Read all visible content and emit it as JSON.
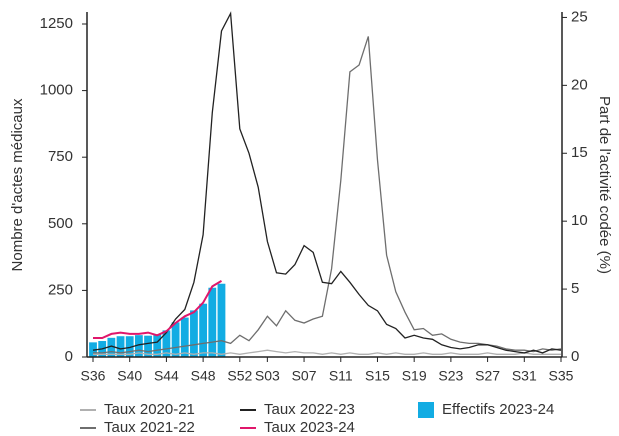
{
  "chart_data": {
    "type": "combo",
    "y_label": "Nombre d'actes médicaux",
    "y2_label": "Part de l'activité codée (%)",
    "categories": [
      "S36",
      null,
      null,
      null,
      "S40",
      null,
      null,
      null,
      "S44",
      null,
      null,
      null,
      "S48",
      null,
      null,
      null,
      "S52",
      null,
      null,
      "S03",
      null,
      null,
      null,
      "S07",
      null,
      null,
      null,
      "S11",
      null,
      null,
      null,
      "S15",
      null,
      null,
      null,
      "S19",
      null,
      null,
      null,
      "S23",
      null,
      null,
      null,
      "S27",
      null,
      null,
      null,
      "S31",
      null,
      null,
      null,
      "S35"
    ],
    "ylim": [
      0,
      1295
    ],
    "yticks": [
      0,
      250,
      500,
      750,
      1000,
      1250
    ],
    "y2lim": [
      0,
      25.4
    ],
    "y2ticks": [
      0,
      5,
      10,
      15,
      20,
      25
    ],
    "series": [
      {
        "name": "Taux 2020-21",
        "type": "line",
        "axis": "y2",
        "color": "#b0b0b0",
        "values": [
          0.2,
          0.2,
          0.2,
          0.2,
          0.2,
          0.3,
          0.2,
          0.2,
          0.3,
          0.2,
          0.3,
          0.2,
          0.3,
          0.3,
          0.2,
          0.3,
          0.2,
          0.3,
          0.4,
          0.5,
          0.4,
          0.3,
          0.4,
          0.3,
          0.3,
          0.2,
          0.3,
          0.2,
          0.3,
          0.2,
          0.2,
          0.3,
          0.2,
          0.3,
          0.2,
          0.2,
          0.3,
          0.2,
          0.2,
          0.3,
          0.2,
          0.2,
          0.2,
          0.3,
          0.2,
          0.2,
          0.2,
          0.3,
          0.2,
          0.2,
          0.2,
          0.2
        ]
      },
      {
        "name": "Taux 2021-22",
        "type": "line",
        "axis": "y2",
        "color": "#6e6e6e",
        "values": [
          0.3,
          0.3,
          0.4,
          0.3,
          0.4,
          0.5,
          0.4,
          0.5,
          0.6,
          0.7,
          0.8,
          0.9,
          1.0,
          1.1,
          1.2,
          1.0,
          1.6,
          1.2,
          2.0,
          3.0,
          2.3,
          3.4,
          2.7,
          2.5,
          2.8,
          3.0,
          6.5,
          13,
          21,
          21.5,
          23.6,
          14.5,
          7.5,
          4.8,
          3.3,
          2.0,
          2.1,
          1.6,
          1.7,
          1.3,
          1.1,
          1.0,
          1.0,
          0.9,
          0.8,
          0.6,
          0.5,
          0.5,
          0.4,
          0.6,
          0.5,
          0.6
        ]
      },
      {
        "name": "Taux 2022-23",
        "type": "line",
        "axis": "y2",
        "color": "#222222",
        "values": [
          0.5,
          0.6,
          0.8,
          0.6,
          0.7,
          0.9,
          1.0,
          1.1,
          1.8,
          2.8,
          3.5,
          5.5,
          9,
          18,
          24,
          25.3,
          16.8,
          15,
          12.5,
          8.5,
          6.2,
          6.1,
          6.8,
          8.2,
          7.7,
          5.5,
          5.4,
          6.3,
          5.5,
          4.6,
          3.8,
          3.4,
          2.4,
          2.1,
          1.4,
          1.6,
          1.4,
          1.3,
          0.9,
          0.7,
          0.6,
          0.7,
          0.9,
          0.9,
          0.7,
          0.5,
          0.4,
          0.3,
          0.5,
          0.3,
          0.6,
          0.5
        ]
      },
      {
        "name": "Taux 2023-24",
        "type": "line",
        "axis": "y2",
        "color": "#e0176b",
        "values": [
          1.4,
          1.4,
          1.7,
          1.8,
          1.7,
          1.7,
          1.8,
          1.6,
          1.9,
          2.5,
          3.0,
          3.3,
          4.0,
          5.2,
          5.6,
          null,
          null,
          null,
          null,
          null,
          null,
          null,
          null,
          null,
          null,
          null,
          null,
          null,
          null,
          null,
          null,
          null,
          null,
          null,
          null,
          null,
          null,
          null,
          null,
          null,
          null,
          null,
          null,
          null,
          null,
          null,
          null,
          null,
          null,
          null,
          null,
          null
        ]
      },
      {
        "name": "Effectifs 2023-24",
        "type": "bar",
        "axis": "y",
        "color": "#12ace3",
        "values": [
          55,
          60,
          72,
          78,
          78,
          82,
          80,
          85,
          100,
          130,
          148,
          175,
          200,
          260,
          275,
          null,
          null,
          null,
          null,
          null,
          null,
          null,
          null,
          null,
          null,
          null,
          null,
          null,
          null,
          null,
          null,
          null,
          null,
          null,
          null,
          null,
          null,
          null,
          null,
          null,
          null,
          null,
          null,
          null,
          null,
          null,
          null,
          null,
          null,
          null,
          null,
          null
        ]
      }
    ]
  }
}
